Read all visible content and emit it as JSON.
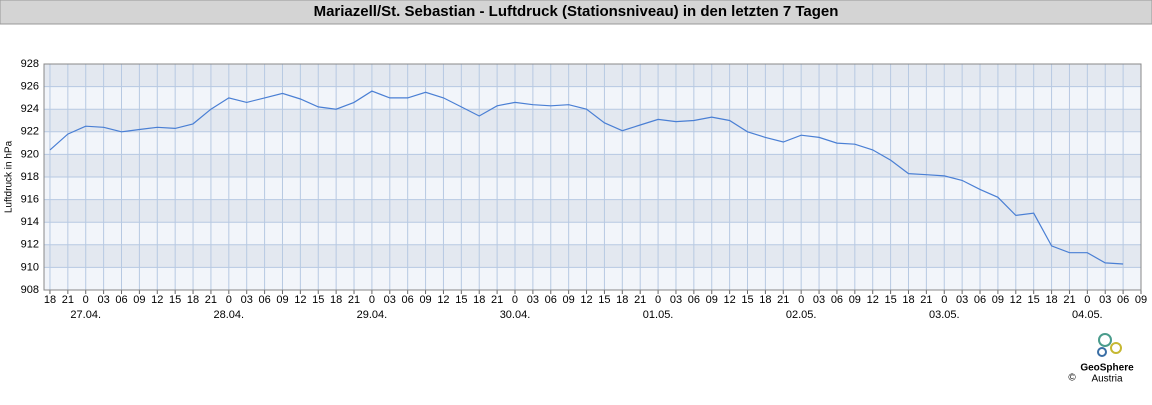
{
  "chart_data": {
    "type": "line",
    "title": "Mariazell/St. Sebastian - Luftdruck (Stationsniveau) in den letzten 7 Tagen",
    "y_label": "Luftdruck in hPa",
    "x": [
      "26.04. 18:00",
      "26.04. 21:00",
      "27.04. 00:00",
      "27.04. 03:00",
      "27.04. 06:00",
      "27.04. 09:00",
      "27.04. 12:00",
      "27.04. 15:00",
      "27.04. 18:00",
      "27.04. 21:00",
      "28.04. 00:00",
      "28.04. 03:00",
      "28.04. 06:00",
      "28.04. 09:00",
      "28.04. 12:00",
      "28.04. 15:00",
      "28.04. 18:00",
      "28.04. 21:00",
      "29.04. 00:00",
      "29.04. 03:00",
      "29.04. 06:00",
      "29.04. 09:00",
      "29.04. 12:00",
      "29.04. 15:00",
      "29.04. 18:00",
      "29.04. 21:00",
      "30.04. 00:00",
      "30.04. 03:00",
      "30.04. 06:00",
      "30.04. 09:00",
      "30.04. 12:00",
      "30.04. 15:00",
      "30.04. 18:00",
      "30.04. 21:00",
      "01.05. 00:00",
      "01.05. 03:00",
      "01.05. 06:00",
      "01.05. 09:00",
      "01.05. 12:00",
      "01.05. 15:00",
      "01.05. 18:00",
      "01.05. 21:00",
      "02.05. 00:00",
      "02.05. 03:00",
      "02.05. 06:00",
      "02.05. 09:00",
      "02.05. 12:00",
      "02.05. 15:00",
      "02.05. 18:00",
      "02.05. 21:00",
      "03.05. 00:00",
      "03.05. 03:00",
      "03.05. 06:00",
      "03.05. 09:00",
      "03.05. 12:00",
      "03.05. 15:00",
      "03.05. 18:00",
      "03.05. 21:00",
      "04.05. 00:00",
      "04.05. 03:00",
      "04.05. 06:00"
    ],
    "series": [
      {
        "color": "#4a7fd4",
        "values": [
          920.4,
          921.8,
          922.5,
          922.4,
          922.0,
          922.2,
          922.4,
          922.3,
          922.7,
          924.0,
          925.0,
          924.6,
          925.0,
          925.4,
          924.9,
          924.2,
          924.0,
          924.6,
          925.6,
          925.0,
          925.0,
          925.5,
          925.0,
          924.2,
          923.4,
          924.3,
          924.6,
          924.4,
          924.3,
          924.4,
          924.0,
          922.8,
          922.1,
          922.6,
          923.1,
          922.9,
          923.0,
          923.3,
          923.0,
          922.0,
          921.5,
          921.1,
          921.7,
          921.5,
          921.0,
          920.9,
          920.4,
          919.5,
          918.3,
          918.2,
          918.1,
          917.7,
          916.9,
          916.2,
          914.6,
          914.8,
          911.9,
          911.3,
          911.3,
          910.4,
          910.3
        ]
      }
    ],
    "xlim": [
      "26.04. 17:00",
      "04.05. 09:00"
    ],
    "xticks": [
      {
        "value": "26.04. 18:00",
        "label": "18"
      },
      {
        "value": "26.04. 21:00",
        "label": "21"
      },
      {
        "value": "27.04. 00:00",
        "label": "0"
      },
      {
        "value": "27.04. 03:00",
        "label": "03"
      },
      {
        "value": "27.04. 06:00",
        "label": "06"
      },
      {
        "value": "27.04. 09:00",
        "label": "09"
      },
      {
        "value": "27.04. 12:00",
        "label": "12"
      },
      {
        "value": "27.04. 15:00",
        "label": "15"
      },
      {
        "value": "27.04. 18:00",
        "label": "18"
      },
      {
        "value": "27.04. 21:00",
        "label": "21"
      },
      {
        "value": "28.04. 00:00",
        "label": "0"
      },
      {
        "value": "28.04. 03:00",
        "label": "03"
      },
      {
        "value": "28.04. 06:00",
        "label": "06"
      },
      {
        "value": "28.04. 09:00",
        "label": "09"
      },
      {
        "value": "28.04. 12:00",
        "label": "12"
      },
      {
        "value": "28.04. 15:00",
        "label": "15"
      },
      {
        "value": "28.04. 18:00",
        "label": "18"
      },
      {
        "value": "28.04. 21:00",
        "label": "21"
      },
      {
        "value": "29.04. 00:00",
        "label": "0"
      },
      {
        "value": "29.04. 03:00",
        "label": "03"
      },
      {
        "value": "29.04. 06:00",
        "label": "06"
      },
      {
        "value": "29.04. 09:00",
        "label": "09"
      },
      {
        "value": "29.04. 12:00",
        "label": "12"
      },
      {
        "value": "29.04. 15:00",
        "label": "15"
      },
      {
        "value": "29.04. 18:00",
        "label": "18"
      },
      {
        "value": "29.04. 21:00",
        "label": "21"
      },
      {
        "value": "30.04. 00:00",
        "label": "0"
      },
      {
        "value": "30.04. 03:00",
        "label": "03"
      },
      {
        "value": "30.04. 06:00",
        "label": "06"
      },
      {
        "value": "30.04. 09:00",
        "label": "09"
      },
      {
        "value": "30.04. 12:00",
        "label": "12"
      },
      {
        "value": "30.04. 15:00",
        "label": "15"
      },
      {
        "value": "30.04. 18:00",
        "label": "18"
      },
      {
        "value": "30.04. 21:00",
        "label": "21"
      },
      {
        "value": "01.05. 00:00",
        "label": "0"
      },
      {
        "value": "01.05. 03:00",
        "label": "03"
      },
      {
        "value": "01.05. 06:00",
        "label": "06"
      },
      {
        "value": "01.05. 09:00",
        "label": "09"
      },
      {
        "value": "01.05. 12:00",
        "label": "12"
      },
      {
        "value": "01.05. 15:00",
        "label": "15"
      },
      {
        "value": "01.05. 18:00",
        "label": "18"
      },
      {
        "value": "01.05. 21:00",
        "label": "21"
      },
      {
        "value": "02.05. 00:00",
        "label": "0"
      },
      {
        "value": "02.05. 03:00",
        "label": "03"
      },
      {
        "value": "02.05. 06:00",
        "label": "06"
      },
      {
        "value": "02.05. 09:00",
        "label": "09"
      },
      {
        "value": "02.05. 12:00",
        "label": "12"
      },
      {
        "value": "02.05. 15:00",
        "label": "15"
      },
      {
        "value": "02.05. 18:00",
        "label": "18"
      },
      {
        "value": "02.05. 21:00",
        "label": "21"
      },
      {
        "value": "03.05. 00:00",
        "label": "0"
      },
      {
        "value": "03.05. 03:00",
        "label": "03"
      },
      {
        "value": "03.05. 06:00",
        "label": "06"
      },
      {
        "value": "03.05. 09:00",
        "label": "09"
      },
      {
        "value": "03.05. 12:00",
        "label": "12"
      },
      {
        "value": "03.05. 15:00",
        "label": "15"
      },
      {
        "value": "03.05. 18:00",
        "label": "18"
      },
      {
        "value": "03.05. 21:00",
        "label": "21"
      },
      {
        "value": "04.05. 00:00",
        "label": "0"
      },
      {
        "value": "04.05. 03:00",
        "label": "03"
      },
      {
        "value": "04.05. 06:00",
        "label": "06"
      },
      {
        "value": "04.05. 09:00",
        "label": "09"
      }
    ],
    "date_labels": [
      {
        "value": "27.04. 00:00",
        "label": "27.04."
      },
      {
        "value": "28.04. 00:00",
        "label": "28.04."
      },
      {
        "value": "29.04. 00:00",
        "label": "29.04."
      },
      {
        "value": "30.04. 00:00",
        "label": "30.04."
      },
      {
        "value": "01.05. 00:00",
        "label": "01.05."
      },
      {
        "value": "02.05. 00:00",
        "label": "02.05."
      },
      {
        "value": "03.05. 00:00",
        "label": "03.05."
      },
      {
        "value": "04.05. 00:00",
        "label": "04.05."
      }
    ],
    "ylim": [
      908,
      928
    ],
    "yticks": [
      908,
      910,
      912,
      914,
      916,
      918,
      920,
      922,
      924,
      926,
      928
    ],
    "grid": true
  },
  "logo": {
    "name": "GeoSphere",
    "sub": "Austria",
    "copyright": "©"
  }
}
